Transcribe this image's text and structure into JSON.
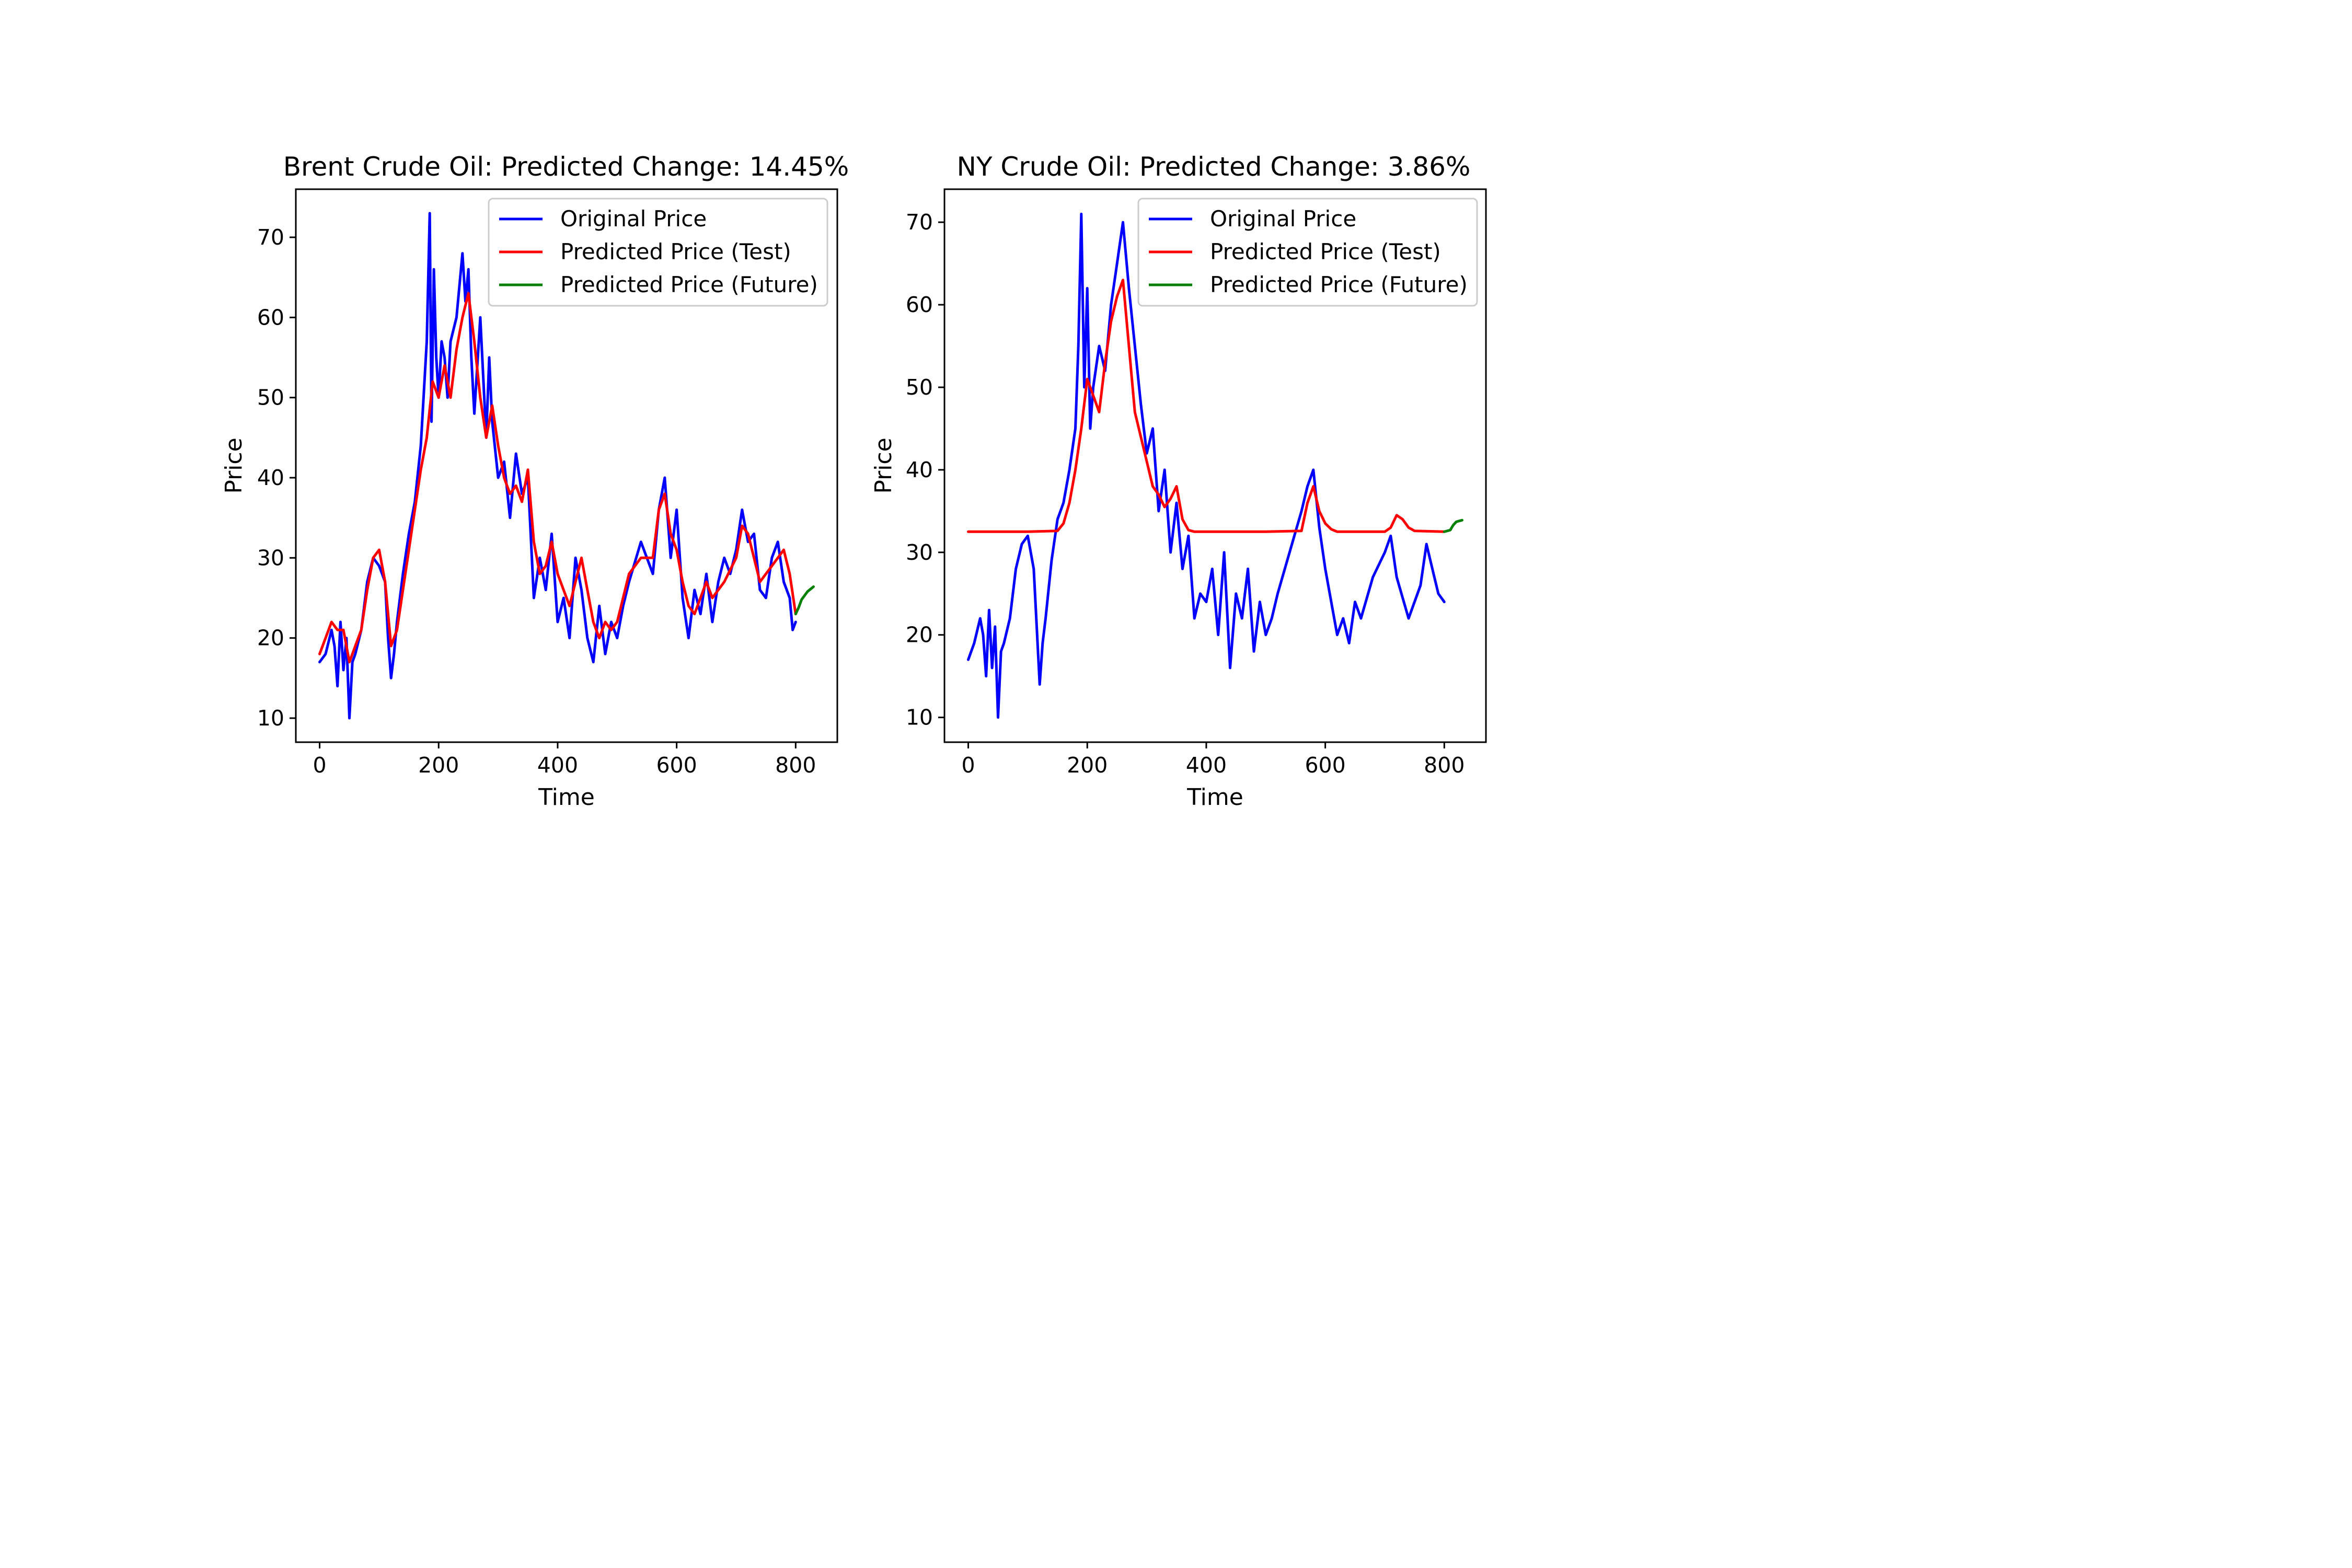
{
  "figure": {
    "background": "#ffffff"
  },
  "chart_data": [
    {
      "type": "line",
      "title": "Brent Crude Oil: Predicted Change: 14.45%",
      "xlabel": "Time",
      "ylabel": "Price",
      "xlim": [
        -40,
        870
      ],
      "ylim": [
        7,
        76
      ],
      "xticks": [
        0,
        200,
        400,
        600,
        800
      ],
      "yticks": [
        10,
        20,
        30,
        40,
        50,
        60,
        70
      ],
      "grid": false,
      "legend_position": "upper right",
      "series": [
        {
          "name": "Original Price",
          "color": "#0000ff",
          "x": [
            0,
            10,
            20,
            25,
            30,
            35,
            40,
            45,
            50,
            55,
            60,
            70,
            80,
            90,
            100,
            110,
            115,
            120,
            125,
            130,
            140,
            150,
            160,
            170,
            180,
            185,
            188,
            192,
            196,
            200,
            205,
            210,
            215,
            220,
            230,
            240,
            245,
            250,
            255,
            260,
            270,
            280,
            285,
            290,
            300,
            310,
            320,
            330,
            340,
            350,
            360,
            370,
            380,
            390,
            400,
            410,
            420,
            430,
            440,
            450,
            460,
            470,
            480,
            490,
            500,
            510,
            520,
            540,
            560,
            570,
            580,
            590,
            600,
            610,
            620,
            630,
            640,
            650,
            660,
            670,
            680,
            690,
            700,
            710,
            720,
            730,
            740,
            750,
            760,
            770,
            780,
            790,
            795,
            800
          ],
          "y": [
            17,
            18,
            21,
            19,
            14,
            22,
            16,
            20,
            10,
            17,
            18,
            21,
            27,
            30,
            29,
            27,
            20,
            15,
            18,
            22,
            28,
            33,
            37,
            44,
            57,
            73,
            47,
            66,
            55,
            50,
            57,
            55,
            50,
            57,
            60,
            68,
            62,
            66,
            55,
            48,
            60,
            45,
            55,
            47,
            40,
            42,
            35,
            43,
            38,
            40,
            25,
            30,
            26,
            33,
            22,
            25,
            20,
            30,
            26,
            20,
            17,
            24,
            18,
            22,
            20,
            24,
            27,
            32,
            28,
            36,
            40,
            30,
            36,
            25,
            20,
            26,
            23,
            28,
            22,
            27,
            30,
            28,
            31,
            36,
            32,
            33,
            26,
            25,
            30,
            32,
            27,
            25,
            21,
            22
          ]
        },
        {
          "name": "Predicted Price (Test)",
          "color": "#ff0000",
          "x": [
            0,
            10,
            20,
            30,
            40,
            50,
            60,
            70,
            80,
            90,
            100,
            110,
            120,
            130,
            140,
            150,
            160,
            170,
            180,
            190,
            200,
            210,
            220,
            230,
            240,
            250,
            260,
            270,
            280,
            290,
            300,
            310,
            320,
            330,
            340,
            350,
            360,
            370,
            380,
            390,
            400,
            410,
            420,
            430,
            440,
            450,
            460,
            470,
            480,
            490,
            500,
            520,
            540,
            560,
            570,
            580,
            590,
            600,
            610,
            620,
            630,
            640,
            650,
            660,
            680,
            700,
            710,
            720,
            740,
            760,
            770,
            780,
            790,
            800
          ],
          "y": [
            18,
            20,
            22,
            21,
            21,
            17,
            19,
            21,
            26,
            30,
            31,
            27,
            19,
            21,
            26,
            31,
            36,
            41,
            45,
            52,
            50,
            54,
            50,
            56,
            60,
            63,
            57,
            50,
            45,
            49,
            44,
            40,
            38,
            39,
            37,
            41,
            32,
            28,
            29,
            32,
            28,
            26,
            24,
            27,
            30,
            26,
            22,
            20,
            22,
            21,
            22,
            28,
            30,
            30,
            36,
            38,
            33,
            31,
            27,
            24,
            23,
            25,
            27,
            25,
            27,
            30,
            34,
            33,
            27,
            29,
            30,
            31,
            28,
            23
          ]
        },
        {
          "name": "Predicted Price (Future)",
          "color": "#008000",
          "x": [
            800,
            805,
            810,
            820,
            830
          ],
          "y": [
            23,
            23.8,
            24.8,
            25.8,
            26.4
          ]
        }
      ]
    },
    {
      "type": "line",
      "title": "NY Crude Oil: Predicted Change: 3.86%",
      "xlabel": "Time",
      "ylabel": "Price",
      "xlim": [
        -40,
        870
      ],
      "ylim": [
        7,
        74
      ],
      "xticks": [
        0,
        200,
        400,
        600,
        800
      ],
      "yticks": [
        10,
        20,
        30,
        40,
        50,
        60,
        70
      ],
      "grid": false,
      "legend_position": "upper right",
      "series": [
        {
          "name": "Original Price",
          "color": "#0000ff",
          "x": [
            0,
            10,
            20,
            25,
            30,
            35,
            40,
            45,
            50,
            55,
            60,
            70,
            80,
            90,
            100,
            110,
            115,
            120,
            125,
            130,
            140,
            150,
            160,
            170,
            180,
            185,
            190,
            195,
            200,
            205,
            210,
            220,
            230,
            240,
            250,
            260,
            270,
            280,
            290,
            300,
            310,
            320,
            330,
            340,
            350,
            360,
            370,
            380,
            390,
            400,
            410,
            420,
            430,
            440,
            450,
            460,
            470,
            480,
            490,
            500,
            510,
            520,
            540,
            560,
            570,
            580,
            590,
            600,
            610,
            620,
            630,
            640,
            650,
            660,
            680,
            700,
            710,
            720,
            740,
            760,
            770,
            780,
            790,
            800
          ],
          "y": [
            17,
            19,
            22,
            20,
            15,
            23,
            16,
            21,
            10,
            18,
            19,
            22,
            28,
            31,
            32,
            28,
            21,
            14,
            19,
            22,
            29,
            34,
            36,
            40,
            45,
            55,
            71,
            50,
            62,
            45,
            50,
            55,
            52,
            60,
            65,
            70,
            62,
            55,
            48,
            42,
            45,
            35,
            40,
            30,
            36,
            28,
            32,
            22,
            25,
            24,
            28,
            20,
            30,
            16,
            25,
            22,
            28,
            18,
            24,
            20,
            22,
            25,
            30,
            35,
            38,
            40,
            33,
            28,
            24,
            20,
            22,
            19,
            24,
            22,
            27,
            30,
            32,
            27,
            22,
            26,
            31,
            28,
            25,
            24
          ]
        },
        {
          "name": "Predicted Price (Test)",
          "color": "#ff0000",
          "x": [
            0,
            100,
            150,
            160,
            170,
            180,
            190,
            200,
            210,
            220,
            230,
            240,
            250,
            260,
            270,
            280,
            290,
            300,
            310,
            320,
            330,
            340,
            350,
            360,
            370,
            380,
            400,
            500,
            560,
            570,
            580,
            590,
            600,
            610,
            620,
            700,
            710,
            720,
            730,
            740,
            750,
            800
          ],
          "y": [
            32.5,
            32.5,
            32.6,
            33.5,
            36,
            40,
            45,
            51,
            49,
            47,
            53,
            58,
            61,
            63,
            55,
            47,
            44,
            41,
            38,
            37,
            35.5,
            36.5,
            38,
            34,
            32.7,
            32.5,
            32.5,
            32.5,
            32.6,
            36,
            38,
            35,
            33.5,
            32.8,
            32.5,
            32.5,
            33,
            34.5,
            34,
            33,
            32.6,
            32.5
          ]
        },
        {
          "name": "Predicted Price (Future)",
          "color": "#008000",
          "x": [
            800,
            810,
            815,
            820,
            830
          ],
          "y": [
            32.5,
            32.7,
            33.3,
            33.7,
            33.9
          ]
        }
      ]
    }
  ]
}
